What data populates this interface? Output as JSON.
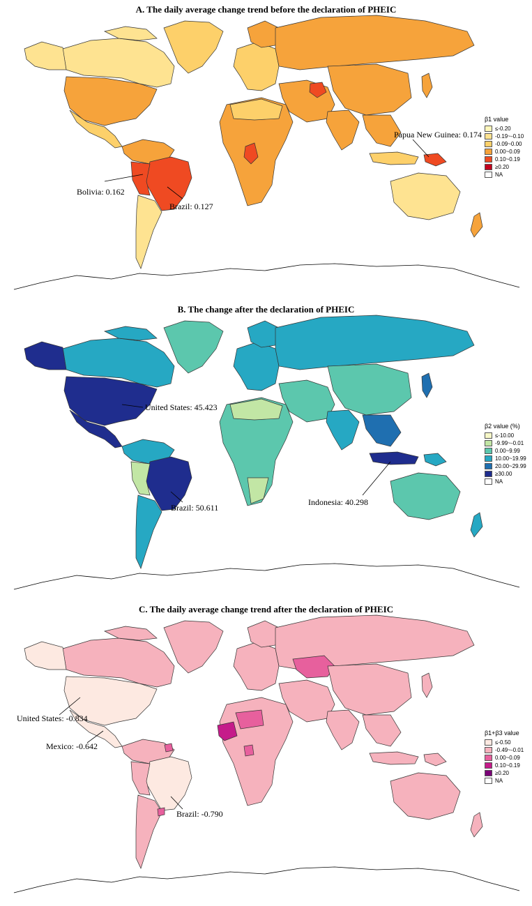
{
  "panels": [
    {
      "id": "a",
      "title": "A. The daily average change trend before the declaration of PHEIC",
      "legend": {
        "title": "β1 value",
        "entries": [
          {
            "label": "≤-0.20",
            "color": "#fff7bc"
          },
          {
            "label": "-0.19~-0.10",
            "color": "#fee391"
          },
          {
            "label": "-0.09~0.00",
            "color": "#fdd06a"
          },
          {
            "label": "0.00~0.09",
            "color": "#f6a33b"
          },
          {
            "label": "0.10~0.19",
            "color": "#ef4a22"
          },
          {
            "label": "≥0.20",
            "color": "#c4001e"
          },
          {
            "label": "NA",
            "color": "#ffffff"
          }
        ]
      },
      "callouts": [
        {
          "text": "Papua New Guinea: 0.174"
        },
        {
          "text": "Bolivia: 0.162"
        },
        {
          "text": "Brazil: 0.127"
        }
      ]
    },
    {
      "id": "b",
      "title": "B. The change after the declaration of PHEIC",
      "legend": {
        "title": "β2 value (%)",
        "entries": [
          {
            "label": "≤-10.00",
            "color": "#f7f8c8"
          },
          {
            "label": "-9.99~-0.01",
            "color": "#c2e6a5"
          },
          {
            "label": "0.00~9.99",
            "color": "#5cc7ad"
          },
          {
            "label": "10.00~19.99",
            "color": "#26a8c3"
          },
          {
            "label": "20.00~29.99",
            "color": "#1f6fb0"
          },
          {
            "label": "≥30.00",
            "color": "#1f2d8e"
          },
          {
            "label": "NA",
            "color": "#ffffff"
          }
        ]
      },
      "callouts": [
        {
          "text": "United States: 45.423"
        },
        {
          "text": "Brazil: 50.611"
        },
        {
          "text": "Indonesia: 40.298"
        }
      ]
    },
    {
      "id": "c",
      "title": "C. The daily average change trend after the declaration of PHEIC",
      "legend": {
        "title": "β1+β3 value",
        "entries": [
          {
            "label": "≤-0.50",
            "color": "#fde9e1"
          },
          {
            "label": "-0.49~-0.01",
            "color": "#f6b2bd"
          },
          {
            "label": "0.00~0.09",
            "color": "#e7609d"
          },
          {
            "label": "0.10~0.19",
            "color": "#c51b8a"
          },
          {
            "label": "≥0.20",
            "color": "#7a0177"
          },
          {
            "label": "NA",
            "color": "#ffffff"
          }
        ]
      },
      "callouts": [
        {
          "text": "United States: -0.834"
        },
        {
          "text": "Mexico: -0.642"
        },
        {
          "text": "Brazil: -0.790"
        }
      ]
    }
  ]
}
